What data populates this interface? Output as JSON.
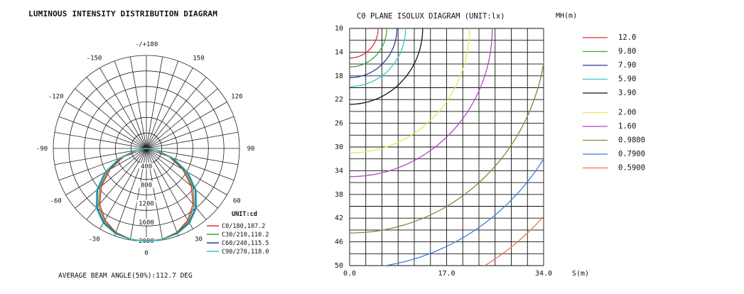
{
  "chart_data": [
    {
      "type": "polar",
      "title": "LUMINOUS INTENSITY DISTRIBUTION DIAGRAM",
      "angle_labels": [
        "-/+180",
        "-150",
        "150",
        "-120",
        "120",
        "-90",
        "90",
        "-60",
        "60",
        "-30",
        "30",
        "0"
      ],
      "angle_values": [
        180,
        -150,
        150,
        -120,
        120,
        -90,
        90,
        -60,
        60,
        -30,
        30,
        0
      ],
      "radial_labels": [
        "400",
        "800",
        "1200",
        "1600",
        "2000"
      ],
      "radial_values": [
        400,
        800,
        1200,
        1600,
        2000
      ],
      "rmax": 2000,
      "unit_label": "UNIT:cd",
      "footer": "AVERAGE BEAM ANGLE(50%):112.7 DEG",
      "angles": [
        0,
        10,
        20,
        30,
        40,
        50,
        60,
        70,
        80,
        90
      ],
      "series": [
        {
          "name": "C0/180,107.2",
          "color": "#e0302a",
          "values": [
            2000,
            1980,
            1920,
            1780,
            1560,
            1260,
            900,
            520,
            200,
            0
          ]
        },
        {
          "name": "C30/210,110.2",
          "color": "#3aa336",
          "values": [
            2000,
            1985,
            1930,
            1810,
            1600,
            1310,
            950,
            560,
            220,
            0
          ]
        },
        {
          "name": "C60/240,115.5",
          "color": "#1f3e9c",
          "values": [
            2000,
            1990,
            1945,
            1840,
            1650,
            1370,
            1010,
            600,
            240,
            0
          ]
        },
        {
          "name": "C90/270,118.0",
          "color": "#3cc6c4",
          "values": [
            2000,
            1990,
            1955,
            1860,
            1680,
            1400,
            1040,
            630,
            250,
            0
          ]
        }
      ]
    },
    {
      "type": "line",
      "title": "C0 PLANE ISOLUX DIAGRAM (UNIT:lx)",
      "ylabel": "MH(m)",
      "xlabel": "S(m)",
      "x_tick_labels": [
        "0.0",
        "17.0",
        "34.0"
      ],
      "x_tick_values": [
        0,
        17,
        34
      ],
      "y_tick_labels": [
        "10",
        "14",
        "18",
        "22",
        "26",
        "30",
        "34",
        "38",
        "42",
        "46",
        "50"
      ],
      "y_tick_values": [
        10,
        14,
        18,
        22,
        26,
        30,
        34,
        38,
        42,
        46,
        50
      ],
      "xlim": [
        0,
        34
      ],
      "ylim": [
        10,
        50
      ],
      "series": [
        {
          "name": "12.0",
          "color": "#e0302a",
          "R": 5.0
        },
        {
          "name": "9.80",
          "color": "#3aa336",
          "R": 6.5
        },
        {
          "name": "7.90",
          "color": "#1f3e9c",
          "R": 8.3
        },
        {
          "name": "5.90",
          "color": "#3cc6c4",
          "R": 9.8
        },
        {
          "name": "3.90",
          "color": "#111111",
          "R": 12.8
        },
        {
          "name": "2.00",
          "color": "#e8e84a",
          "R": 21.0
        },
        {
          "name": "1.60",
          "color": "#b145c4",
          "R": 25.0
        },
        {
          "name": "0.9800",
          "color": "#7f8a3a",
          "R": 34.5
        },
        {
          "name": "0.7900",
          "color": "#3b7fd6",
          "R": 40.5
        },
        {
          "name": "0.5900",
          "color": "#f07050",
          "R": 46.5
        }
      ]
    }
  ]
}
